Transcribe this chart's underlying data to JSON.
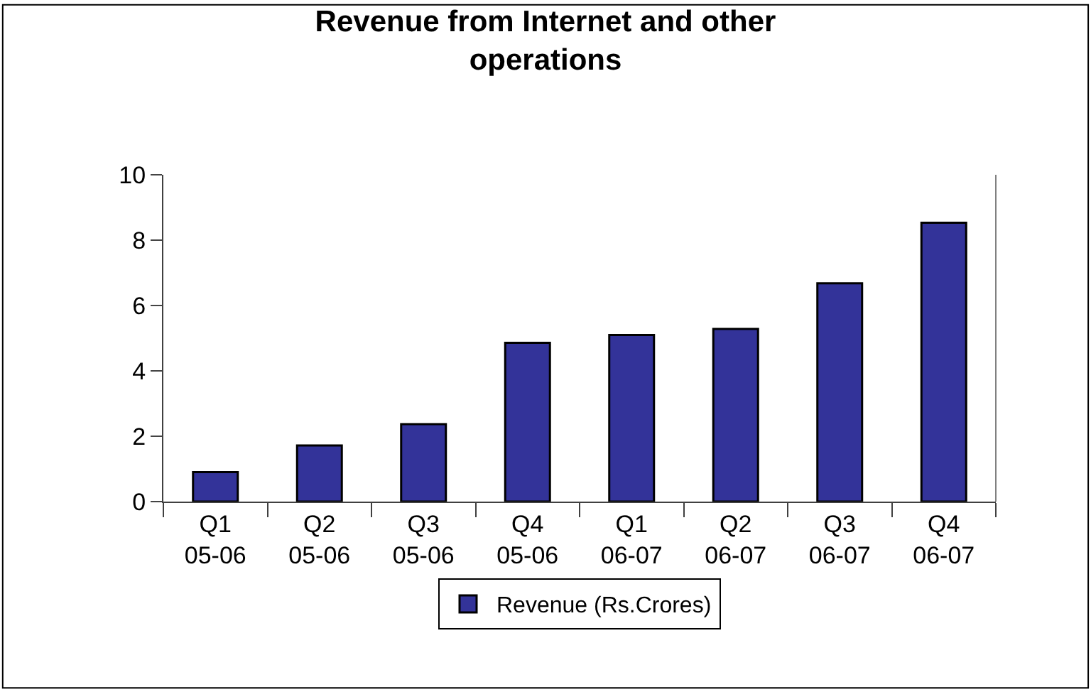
{
  "chart_data": {
    "type": "bar",
    "title": "Revenue from Internet and other\noperations",
    "categories": [
      "Q1\n05-06",
      "Q2\n05-06",
      "Q3\n05-06",
      "Q4\n05-06",
      "Q1\n06-07",
      "Q2\n06-07",
      "Q3\n06-07",
      "Q4\n06-07"
    ],
    "series": [
      {
        "name": "Revenue (Rs.Crores)",
        "color": "#333399",
        "values": [
          0.9,
          1.72,
          2.37,
          4.86,
          5.1,
          5.28,
          6.68,
          8.53
        ]
      }
    ],
    "ylim": [
      0,
      10
    ],
    "yticks": [
      0,
      2,
      4,
      6,
      8,
      10
    ],
    "legend": "bottom"
  }
}
